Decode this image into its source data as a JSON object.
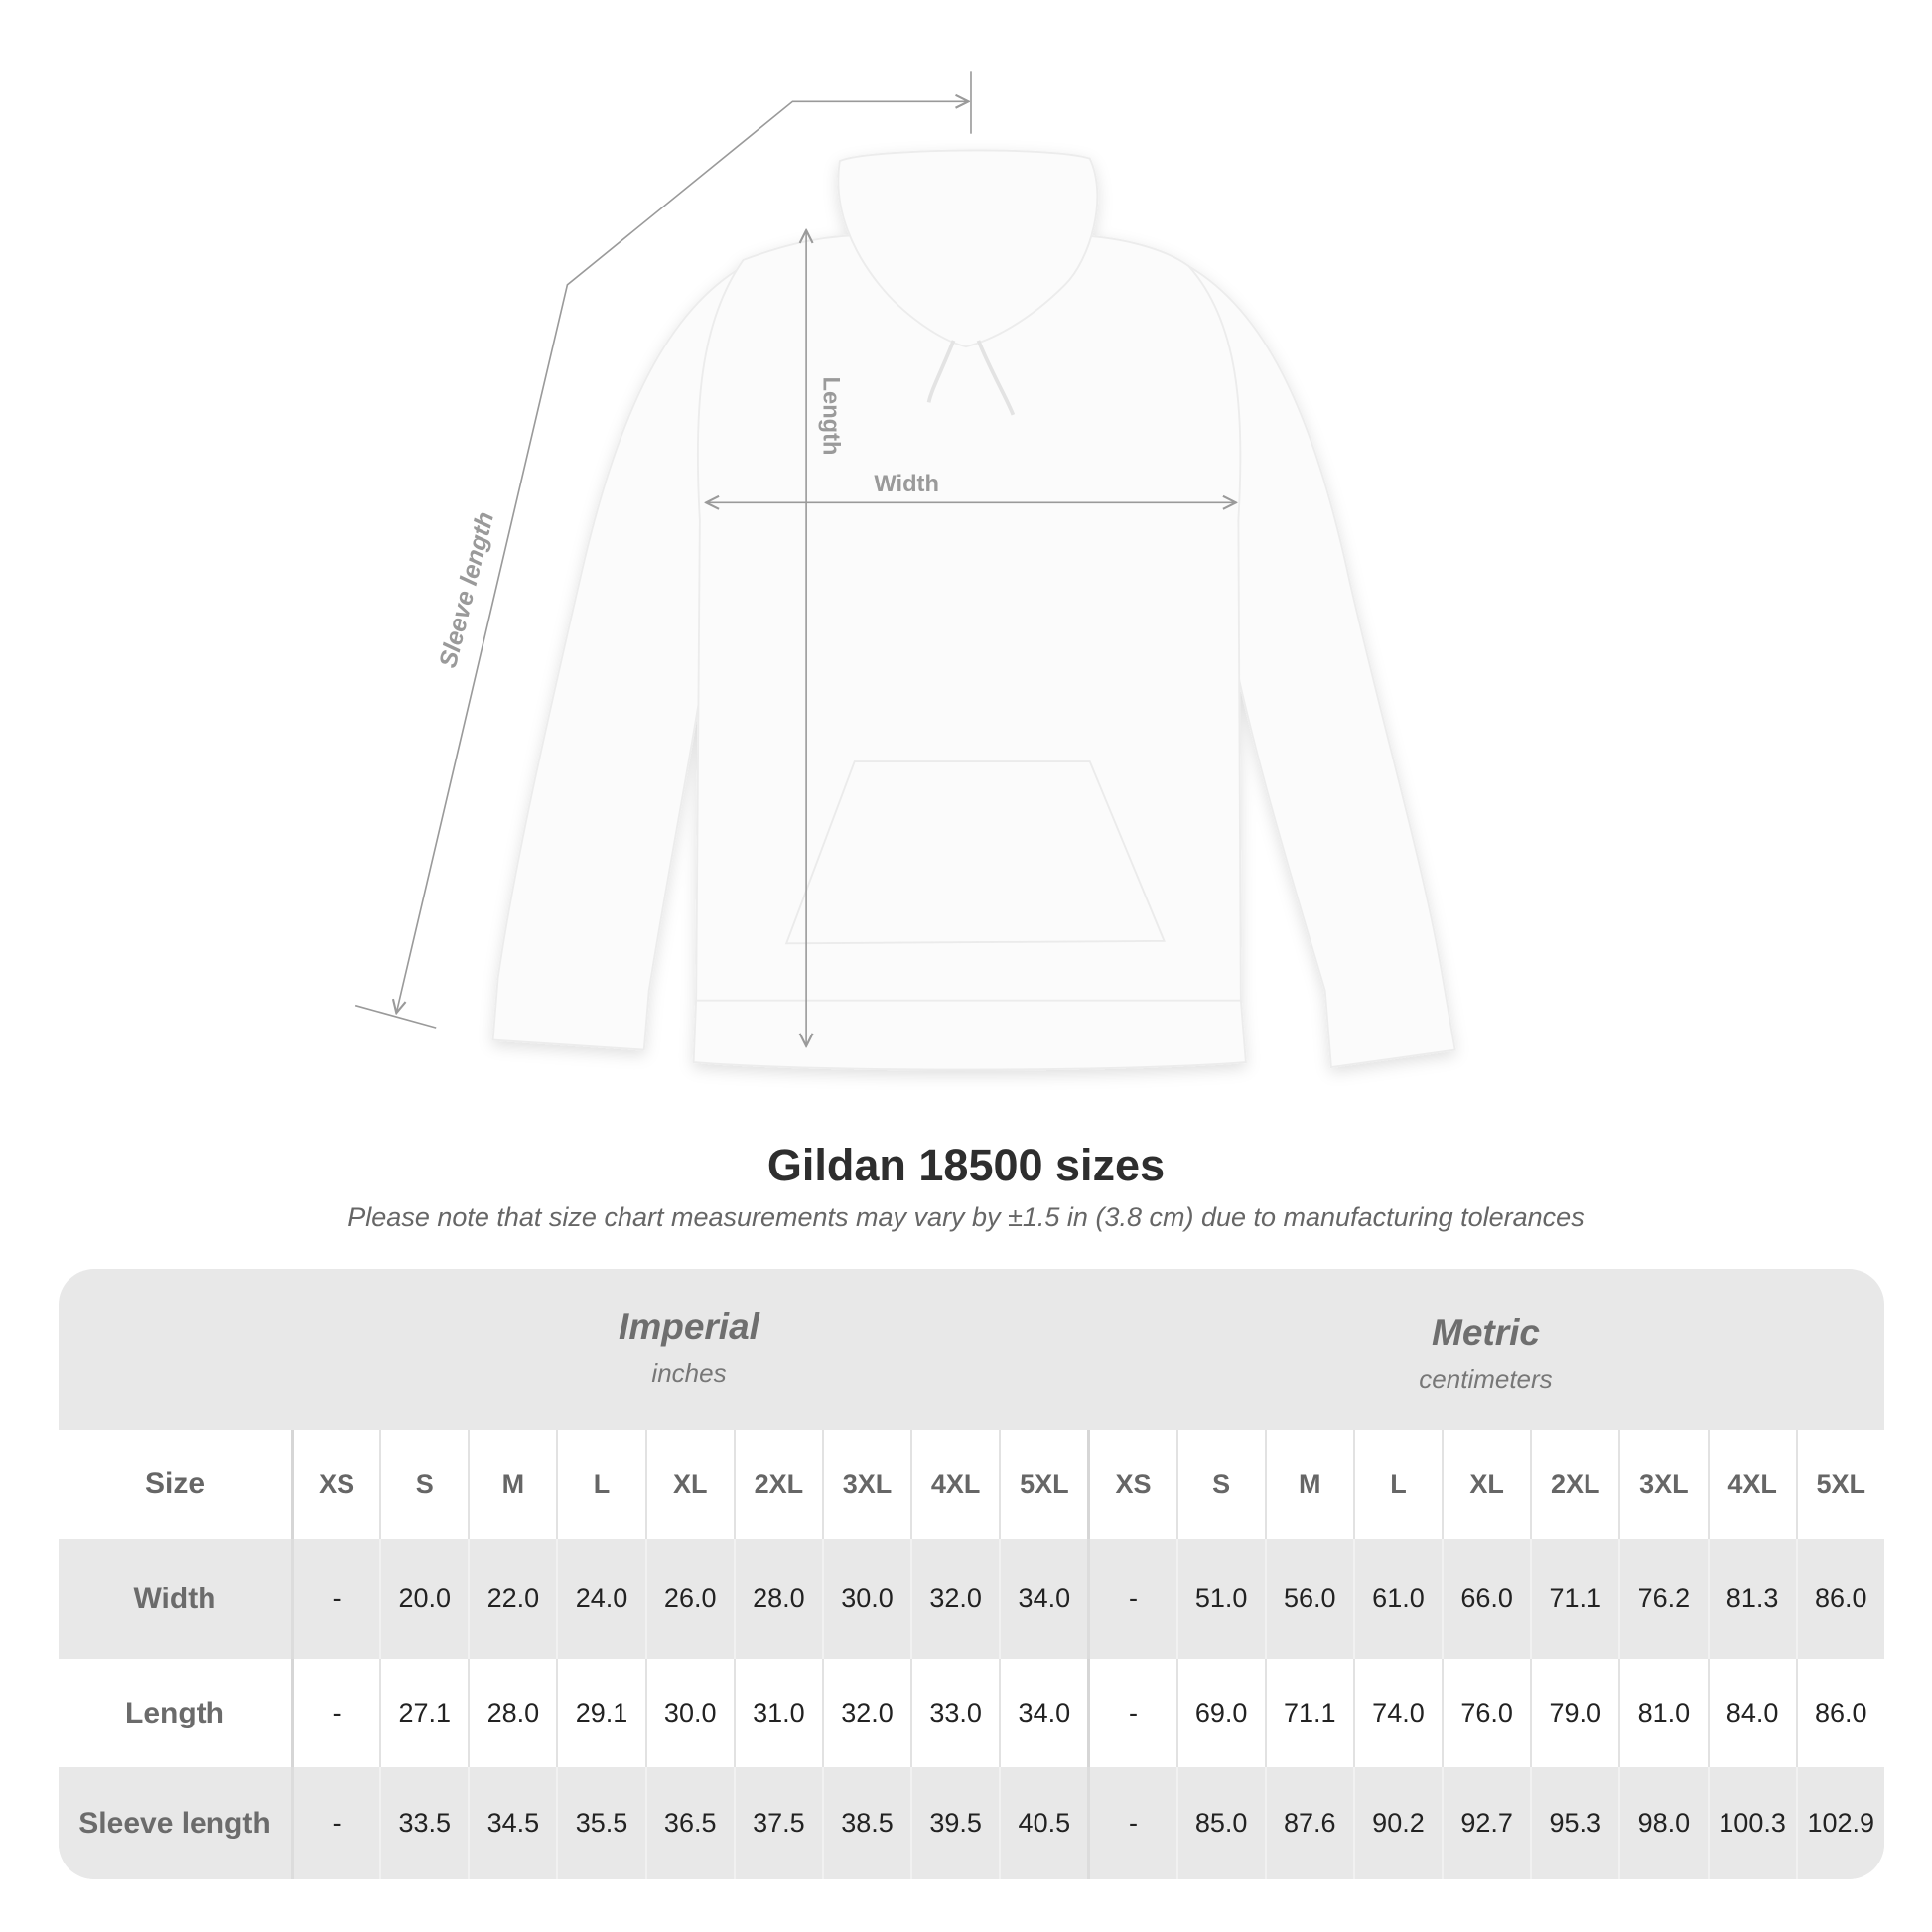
{
  "diagram": {
    "sleeve_label": "Sleeve length",
    "length_label": "Length",
    "width_label": "Width",
    "line_color": "#9a9a9a",
    "garment_color": "#fbfbfb"
  },
  "title": "Gildan 18500 sizes",
  "note": "Please note that size chart measurements may vary by ±1.5 in (3.8 cm) due to manufacturing tolerances",
  "table": {
    "imperial": {
      "system": "Imperial",
      "unit": "inches"
    },
    "metric": {
      "system": "Metric",
      "unit": "centimeters"
    },
    "size_label": "Size",
    "sizes": [
      "XS",
      "S",
      "M",
      "L",
      "XL",
      "2XL",
      "3XL",
      "4XL",
      "5XL"
    ],
    "rows": [
      {
        "label": "Width",
        "imperial": [
          "-",
          "20.0",
          "22.0",
          "24.0",
          "26.0",
          "28.0",
          "30.0",
          "32.0",
          "34.0"
        ],
        "metric": [
          "-",
          "51.0",
          "56.0",
          "61.0",
          "66.0",
          "71.1",
          "76.2",
          "81.3",
          "86.0"
        ]
      },
      {
        "label": "Length",
        "imperial": [
          "-",
          "27.1",
          "28.0",
          "29.1",
          "30.0",
          "31.0",
          "32.0",
          "33.0",
          "34.0"
        ],
        "metric": [
          "-",
          "69.0",
          "71.1",
          "74.0",
          "76.0",
          "79.0",
          "81.0",
          "84.0",
          "86.0"
        ]
      },
      {
        "label": "Sleeve length",
        "imperial": [
          "-",
          "33.5",
          "34.5",
          "35.5",
          "36.5",
          "37.5",
          "38.5",
          "39.5",
          "40.5"
        ],
        "metric": [
          "-",
          "85.0",
          "87.6",
          "90.2",
          "92.7",
          "95.3",
          "98.0",
          "100.3",
          "102.9"
        ]
      }
    ]
  }
}
